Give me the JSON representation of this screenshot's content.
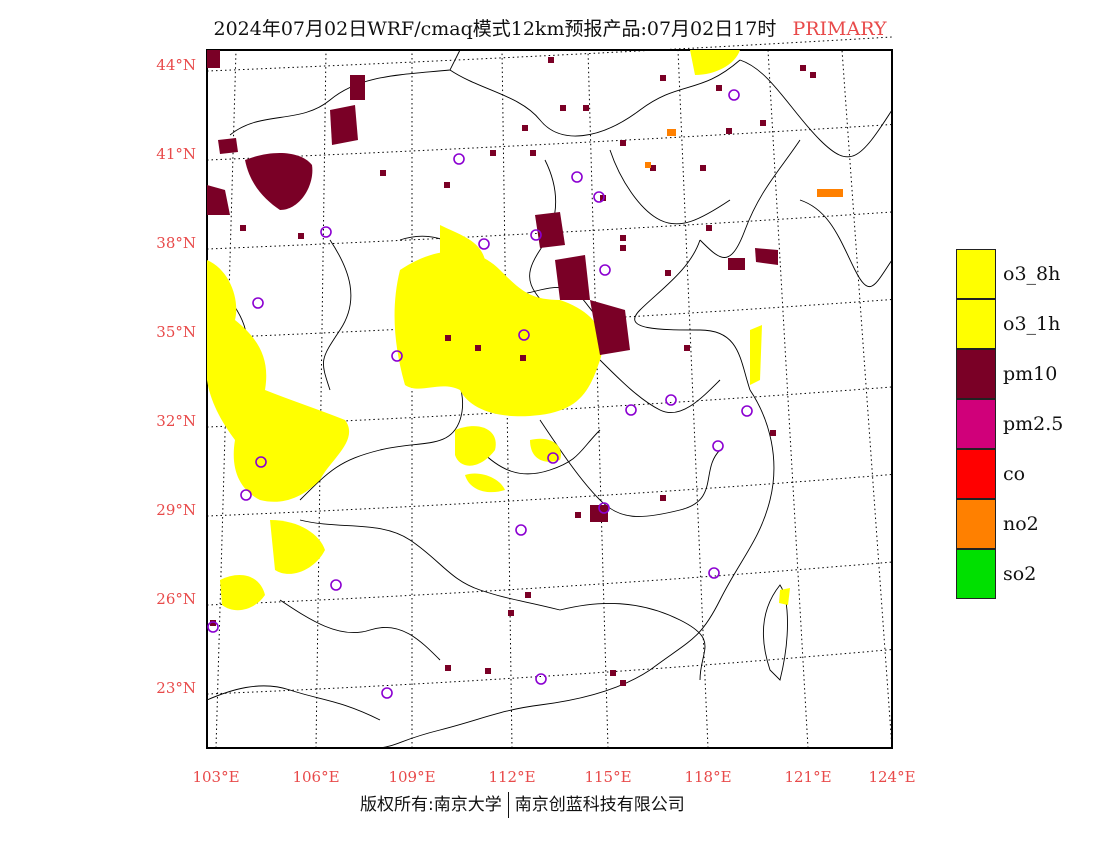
{
  "title": {
    "main": "2024年07月02日WRF/cmaq模式12km预报产品:07月02日17时",
    "tag": "PRIMARY",
    "tag_color": "#e84a4a"
  },
  "map": {
    "lat_labels": [
      "44°N",
      "41°N",
      "38°N",
      "35°N",
      "32°N",
      "29°N",
      "26°N",
      "23°N"
    ],
    "lon_labels": [
      "103°E",
      "106°E",
      "109°E",
      "112°E",
      "115°E",
      "118°E",
      "121°E",
      "124°E"
    ],
    "label_color": "#e84a4a",
    "pollutant_colors": {
      "o3": "#ffff00",
      "pm10": "#7a0026",
      "no2": "#ff8000",
      "site_marker": "#8b00d1"
    }
  },
  "legend": [
    {
      "label": "o3_8h",
      "color": "#ffff00"
    },
    {
      "label": "o3_1h",
      "color": "#ffff00"
    },
    {
      "label": "pm10",
      "color": "#7a0026"
    },
    {
      "label": "pm2.5",
      "color": "#d0007a"
    },
    {
      "label": "co",
      "color": "#ff0000"
    },
    {
      "label": "no2",
      "color": "#ff8000"
    },
    {
      "label": "so2",
      "color": "#00e000"
    }
  ],
  "footer": {
    "left": "版权所有:南京大学",
    "right": "南京创蓝科技有限公司"
  }
}
